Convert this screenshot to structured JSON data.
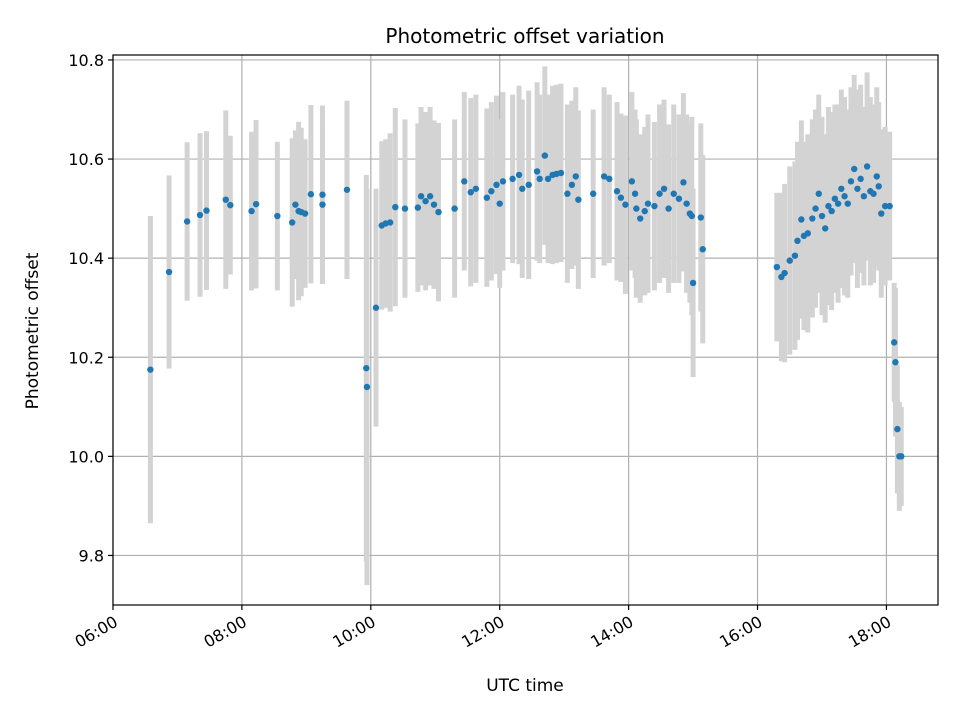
{
  "chart_data": {
    "type": "scatter",
    "title": "Photometric offset variation",
    "xlabel": "UTC time",
    "ylabel": "Photometric offset",
    "x_unit": "hours UTC",
    "xlim": [
      6.0,
      18.8
    ],
    "ylim": [
      9.7,
      10.81
    ],
    "xticks": [
      {
        "value": 6,
        "label": "06:00"
      },
      {
        "value": 8,
        "label": "08:00"
      },
      {
        "value": 10,
        "label": "10:00"
      },
      {
        "value": 12,
        "label": "12:00"
      },
      {
        "value": 14,
        "label": "14:00"
      },
      {
        "value": 16,
        "label": "16:00"
      },
      {
        "value": 18,
        "label": "18:00"
      }
    ],
    "yticks": [
      {
        "value": 9.8,
        "label": "9.8"
      },
      {
        "value": 10.0,
        "label": "10.0"
      },
      {
        "value": 10.2,
        "label": "10.2"
      },
      {
        "value": 10.4,
        "label": "10.4"
      },
      {
        "value": 10.6,
        "label": "10.6"
      },
      {
        "value": 10.8,
        "label": "10.8"
      }
    ],
    "grid": true,
    "colors": {
      "points": "#1f77b4",
      "errorbars": "#d3d3d3",
      "grid": "#b0b0b0"
    },
    "series": [
      {
        "marker_color": "#1f77b4",
        "errorbar_color": "#d3d3d3",
        "points": [
          [
            6.58,
            10.175,
            0.31
          ],
          [
            6.87,
            10.372,
            0.195
          ],
          [
            7.15,
            10.474,
            0.16
          ],
          [
            7.35,
            10.487,
            0.165
          ],
          [
            7.45,
            10.496,
            0.16
          ],
          [
            7.75,
            10.518,
            0.18
          ],
          [
            7.82,
            10.507,
            0.14
          ],
          [
            8.15,
            10.495,
            0.16
          ],
          [
            8.22,
            10.509,
            0.17
          ],
          [
            8.55,
            10.485,
            0.15
          ],
          [
            8.78,
            10.472,
            0.17
          ],
          [
            8.83,
            10.508,
            0.15
          ],
          [
            8.88,
            10.495,
            0.18
          ],
          [
            8.92,
            10.493,
            0.17
          ],
          [
            8.98,
            10.49,
            0.15
          ],
          [
            9.07,
            10.529,
            0.18
          ],
          [
            9.25,
            10.528,
            0.18
          ],
          [
            9.25,
            10.508,
            0.16
          ],
          [
            9.63,
            10.538,
            0.18
          ],
          [
            9.93,
            10.178,
            0.39
          ],
          [
            9.94,
            10.14,
            0.4
          ],
          [
            10.08,
            10.3,
            0.24
          ],
          [
            10.17,
            10.466,
            0.17
          ],
          [
            10.23,
            10.47,
            0.17
          ],
          [
            10.3,
            10.472,
            0.18
          ],
          [
            10.38,
            10.503,
            0.2
          ],
          [
            10.53,
            10.5,
            0.18
          ],
          [
            10.73,
            10.502,
            0.17
          ],
          [
            10.78,
            10.525,
            0.18
          ],
          [
            10.85,
            10.515,
            0.18
          ],
          [
            10.92,
            10.525,
            0.18
          ],
          [
            10.98,
            10.508,
            0.17
          ],
          [
            11.05,
            10.493,
            0.18
          ],
          [
            11.3,
            10.5,
            0.18
          ],
          [
            11.45,
            10.555,
            0.18
          ],
          [
            11.55,
            10.533,
            0.19
          ],
          [
            11.63,
            10.54,
            0.19
          ],
          [
            11.8,
            10.522,
            0.18
          ],
          [
            11.87,
            10.535,
            0.18
          ],
          [
            11.95,
            10.548,
            0.18
          ],
          [
            12.0,
            10.51,
            0.17
          ],
          [
            12.05,
            10.555,
            0.18
          ],
          [
            12.2,
            10.56,
            0.17
          ],
          [
            12.3,
            10.568,
            0.18
          ],
          [
            12.35,
            10.54,
            0.18
          ],
          [
            12.45,
            10.548,
            0.19
          ],
          [
            12.58,
            10.575,
            0.18
          ],
          [
            12.62,
            10.56,
            0.17
          ],
          [
            12.7,
            10.607,
            0.18
          ],
          [
            12.75,
            10.56,
            0.17
          ],
          [
            12.82,
            10.568,
            0.18
          ],
          [
            12.88,
            10.57,
            0.18
          ],
          [
            12.95,
            10.572,
            0.18
          ],
          [
            13.05,
            10.53,
            0.18
          ],
          [
            13.12,
            10.548,
            0.17
          ],
          [
            13.18,
            10.565,
            0.18
          ],
          [
            13.22,
            10.518,
            0.18
          ],
          [
            13.45,
            10.53,
            0.17
          ],
          [
            13.62,
            10.565,
            0.18
          ],
          [
            13.7,
            10.56,
            0.17
          ],
          [
            13.82,
            10.535,
            0.18
          ],
          [
            13.88,
            10.522,
            0.17
          ],
          [
            13.95,
            10.508,
            0.18
          ],
          [
            14.05,
            10.555,
            0.18
          ],
          [
            14.1,
            10.53,
            0.17
          ],
          [
            14.12,
            10.5,
            0.18
          ],
          [
            14.18,
            10.48,
            0.17
          ],
          [
            14.25,
            10.495,
            0.17
          ],
          [
            14.3,
            10.51,
            0.18
          ],
          [
            14.4,
            10.505,
            0.17
          ],
          [
            14.48,
            10.53,
            0.18
          ],
          [
            14.55,
            10.54,
            0.18
          ],
          [
            14.62,
            10.5,
            0.17
          ],
          [
            14.7,
            10.53,
            0.18
          ],
          [
            14.78,
            10.52,
            0.17
          ],
          [
            14.85,
            10.553,
            0.18
          ],
          [
            14.9,
            10.51,
            0.18
          ],
          [
            14.95,
            10.49,
            0.18
          ],
          [
            14.98,
            10.485,
            0.2
          ],
          [
            15.0,
            10.35,
            0.19
          ],
          [
            15.12,
            10.482,
            0.19
          ],
          [
            15.15,
            10.418,
            0.19
          ],
          [
            16.3,
            10.382,
            0.15
          ],
          [
            16.37,
            10.362,
            0.17
          ],
          [
            16.42,
            10.37,
            0.18
          ],
          [
            16.5,
            10.395,
            0.19
          ],
          [
            16.58,
            10.405,
            0.19
          ],
          [
            16.62,
            10.435,
            0.2
          ],
          [
            16.68,
            10.478,
            0.2
          ],
          [
            16.72,
            10.445,
            0.19
          ],
          [
            16.78,
            10.45,
            0.2
          ],
          [
            16.85,
            10.48,
            0.2
          ],
          [
            16.9,
            10.5,
            0.2
          ],
          [
            16.95,
            10.53,
            0.2
          ],
          [
            17.0,
            10.485,
            0.2
          ],
          [
            17.05,
            10.46,
            0.19
          ],
          [
            17.1,
            10.505,
            0.2
          ],
          [
            17.15,
            10.495,
            0.2
          ],
          [
            17.2,
            10.52,
            0.19
          ],
          [
            17.25,
            10.51,
            0.2
          ],
          [
            17.3,
            10.54,
            0.2
          ],
          [
            17.35,
            10.525,
            0.2
          ],
          [
            17.4,
            10.51,
            0.19
          ],
          [
            17.45,
            10.555,
            0.19
          ],
          [
            17.5,
            10.58,
            0.19
          ],
          [
            17.55,
            10.54,
            0.2
          ],
          [
            17.6,
            10.56,
            0.19
          ],
          [
            17.65,
            10.525,
            0.18
          ],
          [
            17.7,
            10.585,
            0.19
          ],
          [
            17.75,
            10.535,
            0.19
          ],
          [
            17.8,
            10.53,
            0.18
          ],
          [
            17.85,
            10.565,
            0.18
          ],
          [
            17.88,
            10.545,
            0.17
          ],
          [
            17.92,
            10.49,
            0.17
          ],
          [
            17.98,
            10.505,
            0.16
          ],
          [
            18.05,
            10.505,
            0.15
          ],
          [
            18.12,
            10.23,
            0.12
          ],
          [
            18.14,
            10.19,
            0.15
          ],
          [
            18.17,
            10.055,
            0.13
          ],
          [
            18.2,
            10.0,
            0.11
          ],
          [
            18.23,
            10.0,
            0.1
          ]
        ]
      }
    ]
  }
}
